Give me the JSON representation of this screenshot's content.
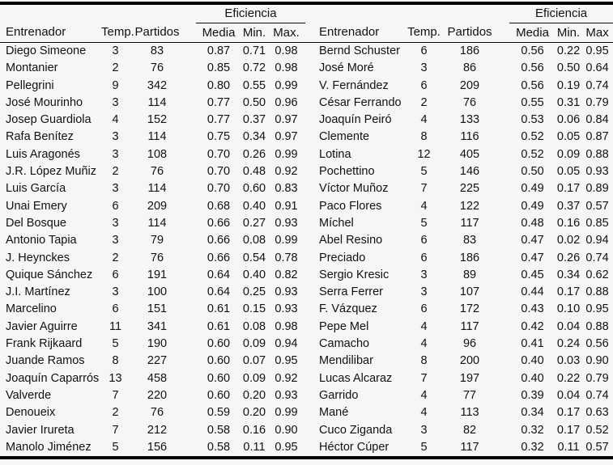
{
  "page": {
    "background_color": "#f6f6f4",
    "rule_color": "#000000",
    "text_color": "#111111"
  },
  "chart_data": {
    "type": "table",
    "title": "",
    "group_header": "Eficiencia",
    "columns_left": [
      "Entrenador",
      "Temp.",
      "Partidos",
      "Media",
      "Min.",
      "Max."
    ],
    "columns_right": [
      "Entrenador",
      "Temp.",
      "Partidos",
      "Media",
      "Min.",
      "Max"
    ],
    "rows_left": [
      {
        "entrenador": "Diego Simeone",
        "temp": 3,
        "partidos": 83,
        "media": "0.87",
        "min": "0.71",
        "max": "0.98"
      },
      {
        "entrenador": "Montanier",
        "temp": 2,
        "partidos": 76,
        "media": "0.85",
        "min": "0.72",
        "max": "0.98"
      },
      {
        "entrenador": "Pellegrini",
        "temp": 9,
        "partidos": 342,
        "media": "0.80",
        "min": "0.55",
        "max": "0.99"
      },
      {
        "entrenador": "José Mourinho",
        "temp": 3,
        "partidos": 114,
        "media": "0.77",
        "min": "0.50",
        "max": "0.96"
      },
      {
        "entrenador": "Josep Guardiola",
        "temp": 4,
        "partidos": 152,
        "media": "0.77",
        "min": "0.37",
        "max": "0.97"
      },
      {
        "entrenador": "Rafa Benítez",
        "temp": 3,
        "partidos": 114,
        "media": "0.75",
        "min": "0.34",
        "max": "0.97"
      },
      {
        "entrenador": "Luis Aragonés",
        "temp": 3,
        "partidos": 108,
        "media": "0.70",
        "min": "0.26",
        "max": "0.99"
      },
      {
        "entrenador": "J.R. López Muñiz",
        "temp": 2,
        "partidos": 76,
        "media": "0.70",
        "min": "0.48",
        "max": "0.92"
      },
      {
        "entrenador": "Luis García",
        "temp": 3,
        "partidos": 114,
        "media": "0.70",
        "min": "0.60",
        "max": "0.83"
      },
      {
        "entrenador": "Unai Emery",
        "temp": 6,
        "partidos": 209,
        "media": "0.68",
        "min": "0.40",
        "max": "0.91"
      },
      {
        "entrenador": "Del Bosque",
        "temp": 3,
        "partidos": 114,
        "media": "0.66",
        "min": "0.27",
        "max": "0.93"
      },
      {
        "entrenador": "Antonio Tapia",
        "temp": 3,
        "partidos": 79,
        "media": "0.66",
        "min": "0.08",
        "max": "0.99"
      },
      {
        "entrenador": "J. Heynckes",
        "temp": 2,
        "partidos": 76,
        "media": "0.66",
        "min": "0.54",
        "max": "0.78"
      },
      {
        "entrenador": "Quique Sánchez",
        "temp": 6,
        "partidos": 191,
        "media": "0.64",
        "min": "0.40",
        "max": "0.82"
      },
      {
        "entrenador": "J.I. Martínez",
        "temp": 3,
        "partidos": 100,
        "media": "0.64",
        "min": "0.25",
        "max": "0.93"
      },
      {
        "entrenador": "Marcelino",
        "temp": 6,
        "partidos": 151,
        "media": "0.61",
        "min": "0.15",
        "max": "0.93"
      },
      {
        "entrenador": "Javier Aguirre",
        "temp": 11,
        "partidos": 341,
        "media": "0.61",
        "min": "0.08",
        "max": "0.98"
      },
      {
        "entrenador": "Frank Rijkaard",
        "temp": 5,
        "partidos": 190,
        "media": "0.60",
        "min": "0.09",
        "max": "0.94"
      },
      {
        "entrenador": "Juande Ramos",
        "temp": 8,
        "partidos": 227,
        "media": "0.60",
        "min": "0.07",
        "max": "0.95"
      },
      {
        "entrenador": "Joaquín Caparrós",
        "temp": 13,
        "partidos": 458,
        "media": "0.60",
        "min": "0.09",
        "max": "0.92"
      },
      {
        "entrenador": "Valverde",
        "temp": 7,
        "partidos": 220,
        "media": "0.60",
        "min": "0.20",
        "max": "0.93"
      },
      {
        "entrenador": "Denoueix",
        "temp": 2,
        "partidos": 76,
        "media": "0.59",
        "min": "0.20",
        "max": "0.99"
      },
      {
        "entrenador": "Javier Irureta",
        "temp": 7,
        "partidos": 212,
        "media": "0.58",
        "min": "0.16",
        "max": "0.90"
      },
      {
        "entrenador": "Manolo Jiménez",
        "temp": 5,
        "partidos": 156,
        "media": "0.58",
        "min": "0.11",
        "max": "0.95"
      }
    ],
    "rows_right": [
      {
        "entrenador": "Bernd Schuster",
        "temp": 6,
        "partidos": 186,
        "media": "0.56",
        "min": "0.22",
        "max": "0.95"
      },
      {
        "entrenador": "José Moré",
        "temp": 3,
        "partidos": 86,
        "media": "0.56",
        "min": "0.50",
        "max": "0.64"
      },
      {
        "entrenador": "V. Fernández",
        "temp": 6,
        "partidos": 209,
        "media": "0.56",
        "min": "0.19",
        "max": "0.74"
      },
      {
        "entrenador": "César Ferrando",
        "temp": 2,
        "partidos": 76,
        "media": "0.55",
        "min": "0.31",
        "max": "0.79"
      },
      {
        "entrenador": "Joaquín Peiró",
        "temp": 4,
        "partidos": 133,
        "media": "0.53",
        "min": "0.06",
        "max": "0.84"
      },
      {
        "entrenador": "Clemente",
        "temp": 8,
        "partidos": 116,
        "media": "0.52",
        "min": "0.05",
        "max": "0.87"
      },
      {
        "entrenador": "Lotina",
        "temp": 12,
        "partidos": 405,
        "media": "0.52",
        "min": "0.09",
        "max": "0.88"
      },
      {
        "entrenador": "Pochettino",
        "temp": 5,
        "partidos": 146,
        "media": "0.50",
        "min": "0.05",
        "max": "0.93"
      },
      {
        "entrenador": "Víctor Muñoz",
        "temp": 7,
        "partidos": 225,
        "media": "0.49",
        "min": "0.17",
        "max": "0.89"
      },
      {
        "entrenador": "Paco Flores",
        "temp": 4,
        "partidos": 122,
        "media": "0.49",
        "min": "0.37",
        "max": "0.57"
      },
      {
        "entrenador": "Míchel",
        "temp": 5,
        "partidos": 117,
        "media": "0.48",
        "min": "0.16",
        "max": "0.85"
      },
      {
        "entrenador": "Abel Resino",
        "temp": 6,
        "partidos": 83,
        "media": "0.47",
        "min": "0.02",
        "max": "0.94"
      },
      {
        "entrenador": "Preciado",
        "temp": 6,
        "partidos": 186,
        "media": "0.47",
        "min": "0.26",
        "max": "0.74"
      },
      {
        "entrenador": "Sergio Kresic",
        "temp": 3,
        "partidos": 89,
        "media": "0.45",
        "min": "0.34",
        "max": "0.62"
      },
      {
        "entrenador": "Serra Ferrer",
        "temp": 3,
        "partidos": 107,
        "media": "0.44",
        "min": "0.17",
        "max": "0.88"
      },
      {
        "entrenador": "F. Vázquez",
        "temp": 6,
        "partidos": 172,
        "media": "0.43",
        "min": "0.10",
        "max": "0.95"
      },
      {
        "entrenador": "Pepe Mel",
        "temp": 4,
        "partidos": 117,
        "media": "0.42",
        "min": "0.04",
        "max": "0.88"
      },
      {
        "entrenador": "Camacho",
        "temp": 4,
        "partidos": 96,
        "media": "0.41",
        "min": "0.24",
        "max": "0.56"
      },
      {
        "entrenador": "Mendilibar",
        "temp": 8,
        "partidos": 200,
        "media": "0.40",
        "min": "0.03",
        "max": "0.90"
      },
      {
        "entrenador": "Lucas Alcaraz",
        "temp": 7,
        "partidos": 197,
        "media": "0.40",
        "min": "0.22",
        "max": "0.79"
      },
      {
        "entrenador": "Garrido",
        "temp": 4,
        "partidos": 77,
        "media": "0.39",
        "min": "0.04",
        "max": "0.74"
      },
      {
        "entrenador": "Mané",
        "temp": 4,
        "partidos": 113,
        "media": "0.34",
        "min": "0.17",
        "max": "0.63"
      },
      {
        "entrenador": "Cuco Ziganda",
        "temp": 3,
        "partidos": 82,
        "media": "0.32",
        "min": "0.17",
        "max": "0.52"
      },
      {
        "entrenador": "Héctor Cúper",
        "temp": 5,
        "partidos": 117,
        "media": "0.32",
        "min": "0.11",
        "max": "0.57"
      }
    ]
  }
}
